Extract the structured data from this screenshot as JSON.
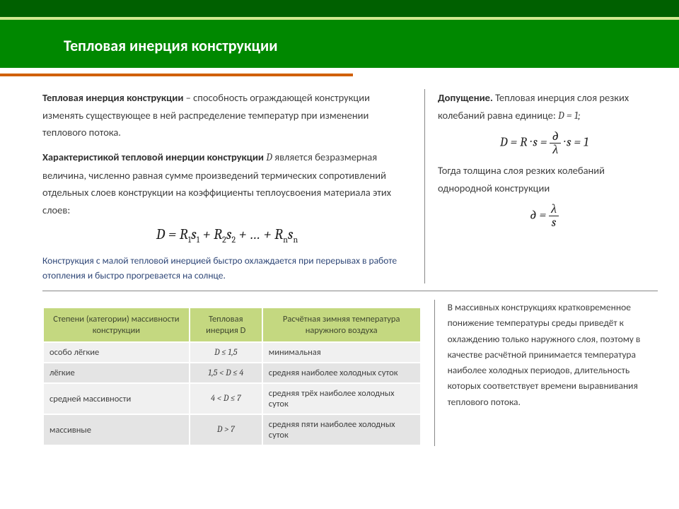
{
  "colors": {
    "header_main": "#008800",
    "header_dark": "#006000",
    "header_thin": "#d0e890",
    "accent": "#d06000",
    "table_header_bg": "#c4d880",
    "row_odd": "#f0f0f0",
    "row_even": "#e4e4e4",
    "note_color": "#304878",
    "text": "#404040"
  },
  "header": {
    "title": "Тепловая инерция конструкции"
  },
  "left": {
    "p1_bold": "Тепловая инерция конструкции",
    "p1_rest": " – способность ограждающей конструкции изменять существующее в ней распределение температур при изменении теплового потока.",
    "p2_bold": "Характеристикой тепловой инерции конструкции ",
    "p2_ital": "D",
    "p2_rest": " является безразмерная величина, численно равная сумме произведений термических сопротивлений отдельных слоев конструкции на коэффициенты теплоусвоения материала этих слоев:",
    "formula": "D = R₁s₁ + R₂s₂ + … + Rₙsₙ",
    "note": "Конструкция с малой тепловой инерцией быстро охлаждается при перерывах в работе отопления и быстро прогревается на солнце."
  },
  "right": {
    "p1_bold": "Допущение.",
    "p1_rest": " Тепловая инерция слоя резких колебаний равна единице:  ",
    "p1_eq": "D = 1;",
    "formula1_parts": {
      "lhs": "D = R · s = ",
      "num": "∂",
      "den": "λ",
      "rhs": " · s = 1"
    },
    "p2": "Тогда толщина слоя резких колебаний однородной конструкции",
    "formula2_parts": {
      "lhs": "∂ = ",
      "num": "λ",
      "den": "s"
    }
  },
  "table": {
    "headers": [
      "Степени (категории) массивности конструкции",
      "Тепловая инерция D",
      "Расчётная зимняя температура наружного воздуха"
    ],
    "rows": [
      {
        "c1": "особо лёгкие",
        "c2": "D ≤ 1,5",
        "c3": "минимальная"
      },
      {
        "c1": "лёгкие",
        "c2": "1,5 < D ≤ 4",
        "c3": "средняя наиболее холодных суток"
      },
      {
        "c1": "средней массивности",
        "c2": "4 < D ≤ 7",
        "c3": "средняя трёх наиболее холодных суток"
      },
      {
        "c1": "массивные",
        "c2": "D > 7",
        "c3": "средняя пяти наиболее холодных суток"
      }
    ]
  },
  "bottom_right": "В массивных конструкциях кратковременное понижение температуры среды приведёт к охлаждению только наружного слоя, поэтому в качестве расчётной принимается температура наиболее холодных периодов, длительность которых соответствует времени выравнивания теплового потока."
}
